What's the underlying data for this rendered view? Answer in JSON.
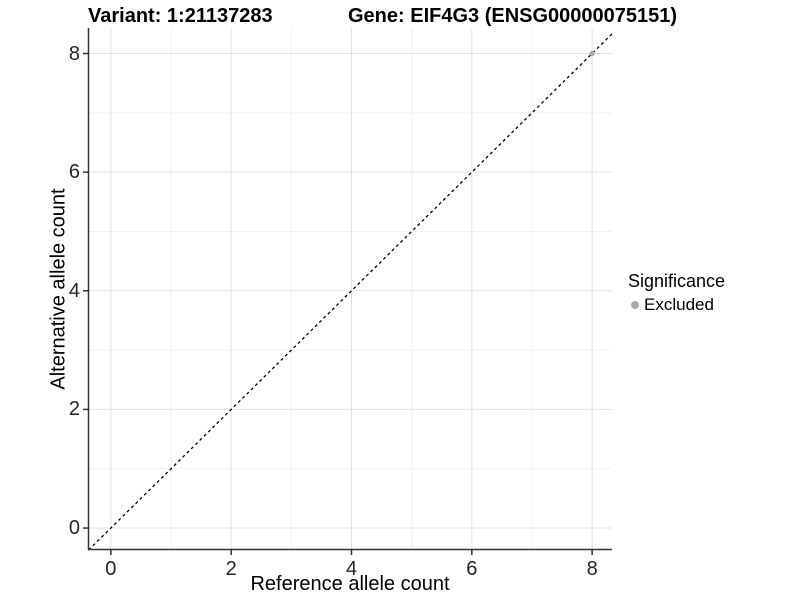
{
  "titles": {
    "variant": "Variant: 1:21137283",
    "gene": "Gene: EIF4G3 (ENSG00000075151)"
  },
  "chart_data": {
    "type": "scatter",
    "xlabel": "Reference allele count",
    "ylabel": "Alternative allele count",
    "xlim": [
      -0.38,
      8.33
    ],
    "ylim": [
      -0.37,
      8.43
    ],
    "xticks": [
      0,
      2,
      4,
      6,
      8
    ],
    "yticks": [
      0,
      2,
      4,
      6,
      8
    ],
    "minor_ticks": [
      1,
      3,
      5,
      7
    ],
    "grid": "major+minor",
    "series": [
      {
        "name": "Excluded",
        "color": "#aaaaaa",
        "points": [
          {
            "x": 8,
            "y": 8
          }
        ]
      }
    ],
    "reference_line": {
      "style": "dashed",
      "equation": "y = x",
      "color": "#000000"
    },
    "legend": {
      "title": "Significance",
      "position": "right",
      "items": [
        {
          "label": "Excluded",
          "color": "#aaaaaa"
        }
      ]
    },
    "colors": {
      "grid_major": "#e2e2e2",
      "grid_minor": "#f0f0f0",
      "axis_line": "#333333",
      "tick_text": "#262626"
    }
  }
}
